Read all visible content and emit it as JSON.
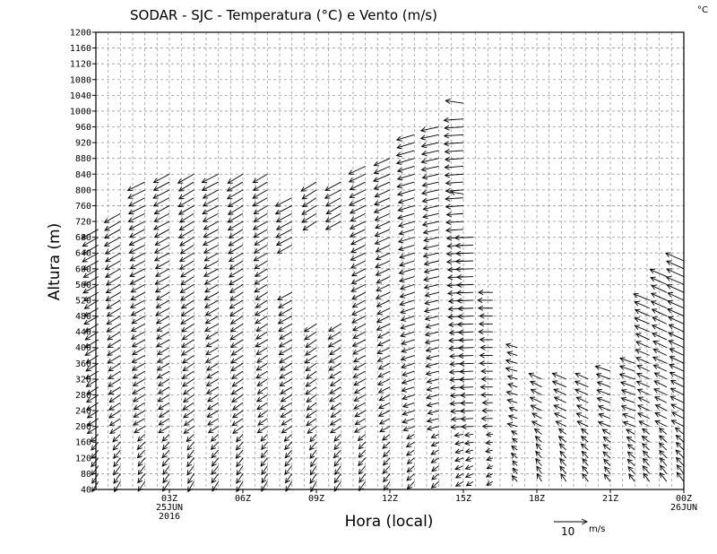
{
  "chart_data": {
    "type": "vector-field",
    "title": "SODAR - SJC - Temperatura (°C) e Vento (m/s)",
    "corner_unit": "°C",
    "xlabel": "Hora (local)",
    "ylabel": "Altura (m)",
    "grid": true,
    "ylim": [
      40,
      1200
    ],
    "y_ticks": [
      40,
      80,
      120,
      160,
      200,
      240,
      280,
      320,
      360,
      400,
      440,
      480,
      520,
      560,
      600,
      640,
      680,
      720,
      760,
      800,
      840,
      880,
      920,
      960,
      1000,
      1040,
      1080,
      1120,
      1160,
      1200
    ],
    "xlim_hours": [
      0,
      24
    ],
    "x_ticks": [
      {
        "hour": 3,
        "lines": [
          "03Z",
          "25JUN",
          "2016"
        ]
      },
      {
        "hour": 6,
        "lines": [
          "06Z"
        ]
      },
      {
        "hour": 9,
        "lines": [
          "09Z"
        ]
      },
      {
        "hour": 12,
        "lines": [
          "12Z"
        ]
      },
      {
        "hour": 15,
        "lines": [
          "15Z"
        ]
      },
      {
        "hour": 18,
        "lines": [
          "18Z"
        ]
      },
      {
        "hour": 21,
        "lines": [
          "21Z"
        ]
      },
      {
        "hour": 24,
        "lines": [
          "00Z",
          "26JUN"
        ]
      }
    ],
    "reference_vector": {
      "label": "10",
      "unit": "m/s",
      "speed": 10
    },
    "wind_profiles": [
      {
        "hour": 0.1,
        "top": 700,
        "u": -5.0,
        "v": -2.8,
        "spread": 0.04
      },
      {
        "hour": 1.0,
        "top": 750,
        "u": -5.0,
        "v": -2.8,
        "spread": 0.04
      },
      {
        "hour": 2.0,
        "top": 830,
        "u": -5.2,
        "v": -2.6,
        "spread": 0.05
      },
      {
        "hour": 3.0,
        "top": 850,
        "u": -5.0,
        "v": -2.6,
        "spread": 0.05
      },
      {
        "hour": 4.0,
        "top": 850,
        "u": -4.8,
        "v": -2.8,
        "spread": 0.06
      },
      {
        "hour": 5.0,
        "top": 850,
        "u": -5.0,
        "v": -2.6,
        "spread": 0.05
      },
      {
        "hour": 6.0,
        "top": 840,
        "u": -4.8,
        "v": -2.8,
        "spread": 0.05
      },
      {
        "hour": 7.0,
        "top": 840,
        "u": -4.5,
        "v": -2.6,
        "spread": 0.06
      },
      {
        "hour": 8.0,
        "top": 790,
        "u": -5.0,
        "v": -2.6,
        "spread": 0.05
      },
      {
        "hour": 9.0,
        "top": 820,
        "u": -4.5,
        "v": -2.8,
        "spread": 0.06
      },
      {
        "hour": 10.0,
        "top": 830,
        "u": -4.8,
        "v": -2.6,
        "spread": 0.06
      },
      {
        "hour": 11.0,
        "top": 860,
        "u": -5.0,
        "v": -2.4,
        "spread": 0.05
      },
      {
        "hour": 12.0,
        "top": 880,
        "u": -5.0,
        "v": -2.2,
        "spread": 0.05
      },
      {
        "hour": 13.0,
        "top": 940,
        "u": -5.5,
        "v": -1.6,
        "spread": 0.05
      },
      {
        "hour": 14.0,
        "top": 960,
        "u": -5.5,
        "v": -1.2,
        "spread": 0.05
      },
      {
        "hour": 15.0,
        "top": 990,
        "u": -6.0,
        "v": -0.4,
        "spread": 0.05
      },
      {
        "hour": 15.4,
        "top": 680,
        "u": -5.5,
        "v": -0.2,
        "spread": 0.05
      },
      {
        "hour": 16.2,
        "top": 540,
        "u": -4.5,
        "v": 0.0,
        "spread": 0.08
      },
      {
        "hour": 17.2,
        "top": 400,
        "u": -3.5,
        "v": 1.0,
        "spread": 0.12
      },
      {
        "hour": 18.2,
        "top": 330,
        "u": -3.8,
        "v": 1.8,
        "spread": 0.08
      },
      {
        "hour": 19.2,
        "top": 320,
        "u": -4.2,
        "v": 1.8,
        "spread": 0.06
      },
      {
        "hour": 20.1,
        "top": 330,
        "u": -4.2,
        "v": 1.8,
        "spread": 0.06
      },
      {
        "hour": 21.0,
        "top": 350,
        "u": -4.5,
        "v": 1.6,
        "spread": 0.06
      },
      {
        "hour": 22.0,
        "top": 370,
        "u": -4.8,
        "v": 1.6,
        "spread": 0.06
      },
      {
        "hour": 22.6,
        "top": 530,
        "u": -4.8,
        "v": 2.0,
        "spread": 0.06
      },
      {
        "hour": 23.3,
        "top": 580,
        "u": -5.0,
        "v": 2.2,
        "spread": 0.05
      },
      {
        "hour": 24.0,
        "top": 620,
        "u": -5.5,
        "v": 2.4,
        "spread": 0.05
      }
    ],
    "isolated_vectors": [
      {
        "hour": 15.0,
        "height": 1020,
        "u": -5.5,
        "v": 0.8
      },
      {
        "hour": 15.0,
        "height": 790,
        "u": -4.0,
        "v": 0.6
      }
    ],
    "data_gaps": [
      {
        "hour_range": [
          7.5,
          9.2
        ],
        "height_range": [
          560,
          640
        ]
      },
      {
        "hour_range": [
          8.2,
          10.8
        ],
        "height_range": [
          480,
          700
        ]
      }
    ]
  }
}
